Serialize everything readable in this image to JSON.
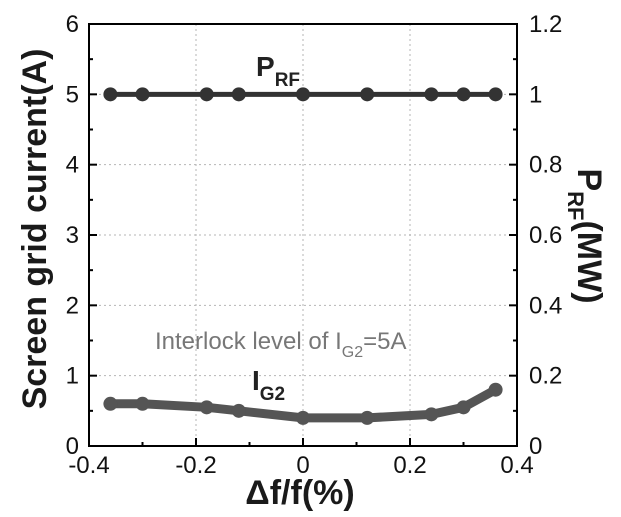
{
  "chart_data": {
    "type": "line",
    "xlabel": "Δf/f(%)",
    "ylabel_left": "Screen grid current(A)",
    "ylabel_right": {
      "main": "P",
      "sub": "RF",
      "tail": "(MW)"
    },
    "xlim": [
      -0.4,
      0.4
    ],
    "ylim_left": [
      0,
      6
    ],
    "ylim_right": [
      0,
      1.2
    ],
    "x_ticks": [
      "-0.4",
      "-0.2",
      "0",
      "0.2",
      "0.4"
    ],
    "y_ticks_left": [
      "0",
      "1",
      "2",
      "3",
      "4",
      "5",
      "6"
    ],
    "y_ticks_right": [
      "0",
      "0.2",
      "0.4",
      "0.6",
      "0.8",
      "1",
      "1.2"
    ],
    "grid": true,
    "series": [
      {
        "name": "P_RF",
        "label": {
          "main": "P",
          "sub": "RF"
        },
        "axis": "right",
        "color": "#333333",
        "x": [
          -0.36,
          -0.3,
          -0.18,
          -0.12,
          0,
          0.12,
          0.24,
          0.3,
          0.36
        ],
        "y": [
          1,
          1,
          1,
          1,
          1,
          1,
          1,
          1,
          1
        ]
      },
      {
        "name": "I_G2",
        "label": {
          "main": "I",
          "sub": "G2"
        },
        "axis": "left",
        "color": "#555555",
        "x": [
          -0.36,
          -0.3,
          -0.18,
          -0.12,
          0,
          0.12,
          0.24,
          0.3,
          0.36
        ],
        "y": [
          0.6,
          0.6,
          0.55,
          0.5,
          0.4,
          0.4,
          0.45,
          0.55,
          0.8
        ]
      }
    ],
    "annotation": {
      "text": "Interlock level of I",
      "sub": "G2",
      "tail": "=5A"
    }
  }
}
